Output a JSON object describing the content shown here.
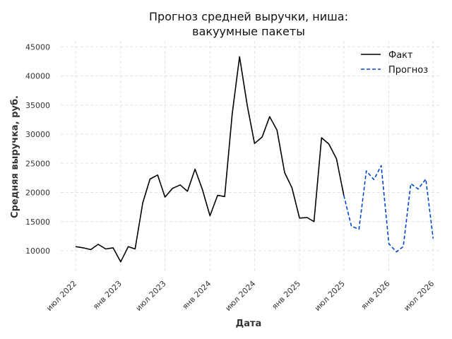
{
  "chart_data": {
    "type": "line",
    "title_lines": [
      "Прогноз средней выручки, ниша:",
      "вакуумные пакеты"
    ],
    "xlabel": "Дата",
    "ylabel": "Средняя выручка, руб.",
    "ylim": [
      6000,
      46000
    ],
    "xlim": [
      "2022-05-01",
      "2026-08-01"
    ],
    "yticks": [
      10000,
      15000,
      20000,
      25000,
      30000,
      35000,
      40000,
      45000
    ],
    "xticks": [
      {
        "date": "2022-07-01",
        "label": "июл 2022"
      },
      {
        "date": "2023-01-01",
        "label": "янв 2023"
      },
      {
        "date": "2023-07-01",
        "label": "июл 2023"
      },
      {
        "date": "2024-01-01",
        "label": "янв 2024"
      },
      {
        "date": "2024-07-01",
        "label": "июл 2024"
      },
      {
        "date": "2025-01-01",
        "label": "янв 2025"
      },
      {
        "date": "2025-07-01",
        "label": "июл 2025"
      },
      {
        "date": "2026-01-01",
        "label": "янв 2026"
      },
      {
        "date": "2026-07-01",
        "label": "июл 2026"
      }
    ],
    "grid": true,
    "legend_position": "top-right",
    "series": [
      {
        "name": "Факт",
        "color": "#000000",
        "style": "solid",
        "points": [
          {
            "x": "2022-07-01",
            "y": 10700
          },
          {
            "x": "2022-08-01",
            "y": 10500
          },
          {
            "x": "2022-09-01",
            "y": 10200
          },
          {
            "x": "2022-10-01",
            "y": 11100
          },
          {
            "x": "2022-11-01",
            "y": 10300
          },
          {
            "x": "2022-12-01",
            "y": 10500
          },
          {
            "x": "2023-01-01",
            "y": 8100
          },
          {
            "x": "2023-02-01",
            "y": 10700
          },
          {
            "x": "2023-03-01",
            "y": 10300
          },
          {
            "x": "2023-04-01",
            "y": 18200
          },
          {
            "x": "2023-05-01",
            "y": 22300
          },
          {
            "x": "2023-06-01",
            "y": 23000
          },
          {
            "x": "2023-07-01",
            "y": 19200
          },
          {
            "x": "2023-08-01",
            "y": 20700
          },
          {
            "x": "2023-09-01",
            "y": 21300
          },
          {
            "x": "2023-10-01",
            "y": 20200
          },
          {
            "x": "2023-11-01",
            "y": 24000
          },
          {
            "x": "2023-12-01",
            "y": 20500
          },
          {
            "x": "2024-01-01",
            "y": 16000
          },
          {
            "x": "2024-02-01",
            "y": 19500
          },
          {
            "x": "2024-03-01",
            "y": 19300
          },
          {
            "x": "2024-04-01",
            "y": 33500
          },
          {
            "x": "2024-05-01",
            "y": 43300
          },
          {
            "x": "2024-06-01",
            "y": 35000
          },
          {
            "x": "2024-07-01",
            "y": 28400
          },
          {
            "x": "2024-08-01",
            "y": 29500
          },
          {
            "x": "2024-09-01",
            "y": 33000
          },
          {
            "x": "2024-10-01",
            "y": 30700
          },
          {
            "x": "2024-11-01",
            "y": 23400
          },
          {
            "x": "2024-12-01",
            "y": 20800
          },
          {
            "x": "2025-01-01",
            "y": 15600
          },
          {
            "x": "2025-02-01",
            "y": 15700
          },
          {
            "x": "2025-03-01",
            "y": 15000
          },
          {
            "x": "2025-04-01",
            "y": 29400
          },
          {
            "x": "2025-05-01",
            "y": 28300
          },
          {
            "x": "2025-06-01",
            "y": 25800
          },
          {
            "x": "2025-07-01",
            "y": 19500
          }
        ]
      },
      {
        "name": "Прогноз",
        "color": "#0044cc",
        "style": "dashed",
        "points": [
          {
            "x": "2025-07-01",
            "y": 19500
          },
          {
            "x": "2025-08-01",
            "y": 14200
          },
          {
            "x": "2025-09-01",
            "y": 13700
          },
          {
            "x": "2025-10-01",
            "y": 23700
          },
          {
            "x": "2025-11-01",
            "y": 22200
          },
          {
            "x": "2025-12-01",
            "y": 24600
          },
          {
            "x": "2026-01-01",
            "y": 11200
          },
          {
            "x": "2026-02-01",
            "y": 9800
          },
          {
            "x": "2026-03-01",
            "y": 10700
          },
          {
            "x": "2026-04-01",
            "y": 21500
          },
          {
            "x": "2026-05-01",
            "y": 20600
          },
          {
            "x": "2026-06-01",
            "y": 22300
          },
          {
            "x": "2026-07-01",
            "y": 12100
          }
        ]
      }
    ]
  }
}
